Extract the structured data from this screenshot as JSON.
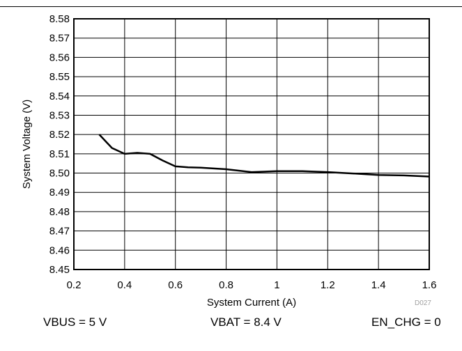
{
  "chart_data": {
    "type": "line",
    "title": "",
    "xlabel": "System Current (A)",
    "ylabel": "System Voltage (V)",
    "xlim": [
      0.2,
      1.6
    ],
    "ylim": [
      8.45,
      8.58
    ],
    "x_ticks": [
      "0.2",
      "0.4",
      "0.6",
      "0.8",
      "1",
      "1.2",
      "1.4",
      "1.6"
    ],
    "y_ticks": [
      "8.45",
      "8.46",
      "8.47",
      "8.48",
      "8.49",
      "8.50",
      "8.51",
      "8.52",
      "8.53",
      "8.54",
      "8.55",
      "8.56",
      "8.57",
      "8.58"
    ],
    "grid": true,
    "series": [
      {
        "x": [
          0.3,
          0.35,
          0.4,
          0.45,
          0.5,
          0.55,
          0.6,
          0.65,
          0.7,
          0.8,
          0.9,
          1.0,
          1.1,
          1.2,
          1.3,
          1.4,
          1.5,
          1.6
        ],
        "y": [
          8.52,
          8.513,
          8.51,
          8.5105,
          8.51,
          8.5065,
          8.5035,
          8.503,
          8.5028,
          8.502,
          8.5005,
          8.501,
          8.501,
          8.5005,
          8.4998,
          8.499,
          8.4988,
          8.4982
        ]
      }
    ],
    "color": "#000000"
  },
  "footer": {
    "vbus": "VBUS = 5 V",
    "vbat": "VBAT = 8.4 V",
    "en_chg": "EN_CHG = 0"
  },
  "source_id": "D027"
}
